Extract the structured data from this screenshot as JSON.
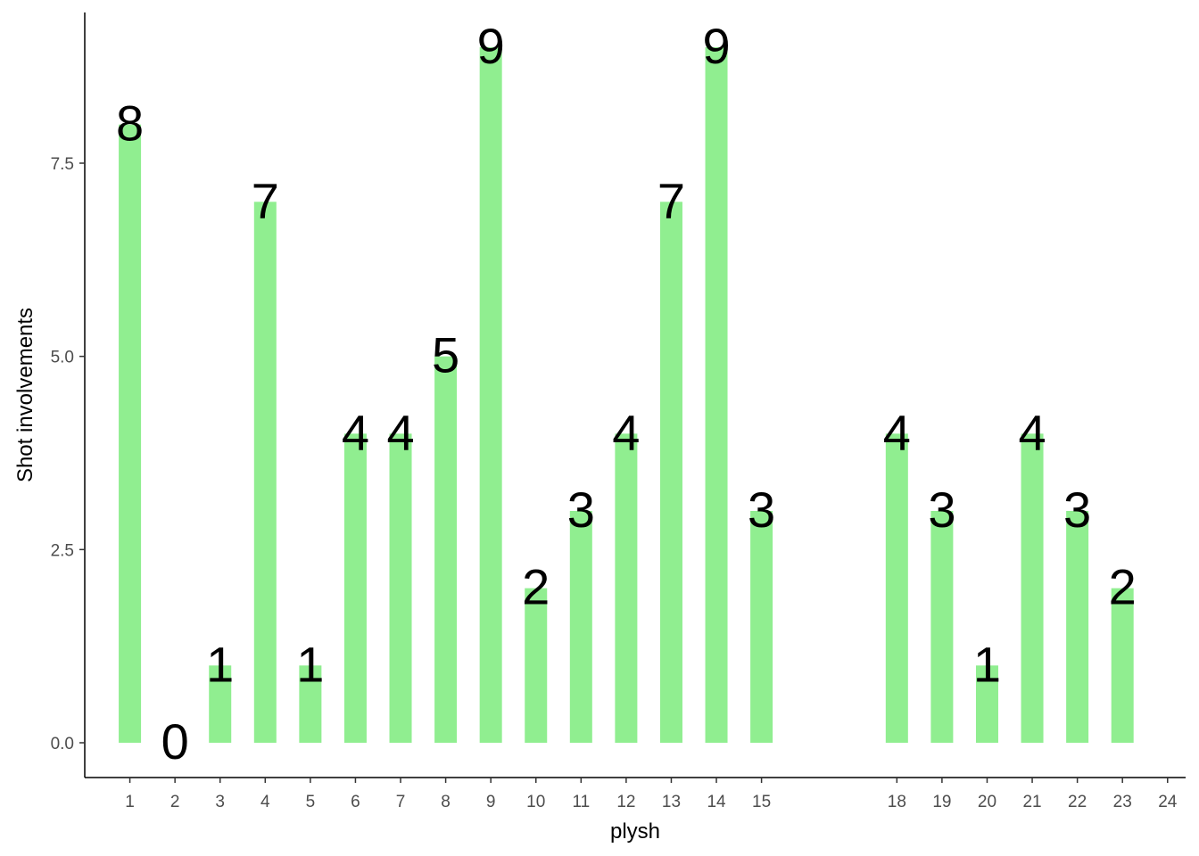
{
  "chart_data": {
    "type": "bar",
    "xlabel": "plysh",
    "ylabel": "Shot involvements",
    "x_ticks": [
      "1",
      "2",
      "3",
      "4",
      "5",
      "6",
      "7",
      "8",
      "9",
      "10",
      "11",
      "12",
      "13",
      "14",
      "15",
      "18",
      "19",
      "20",
      "21",
      "22",
      "23",
      "24"
    ],
    "x": [
      1,
      2,
      3,
      4,
      5,
      6,
      7,
      8,
      9,
      10,
      11,
      12,
      13,
      14,
      15,
      18,
      19,
      20,
      21,
      22,
      23
    ],
    "values": [
      8,
      0,
      1,
      7,
      1,
      4,
      4,
      5,
      9,
      2,
      3,
      4,
      7,
      9,
      3,
      4,
      3,
      1,
      4,
      3,
      2
    ],
    "value_labels": [
      "8",
      "0",
      "1",
      "7",
      "1",
      "4",
      "4",
      "5",
      "9",
      "2",
      "3",
      "4",
      "7",
      "9",
      "3",
      "4",
      "3",
      "1",
      "4",
      "3",
      "2"
    ],
    "y_ticks": [
      "0.0",
      "2.5",
      "5.0",
      "7.5"
    ],
    "xlim": [
      0,
      24.4
    ],
    "ylim": [
      -0.45,
      9.45
    ],
    "bar_color": "#90EE90",
    "grid": false,
    "legend": "none"
  }
}
